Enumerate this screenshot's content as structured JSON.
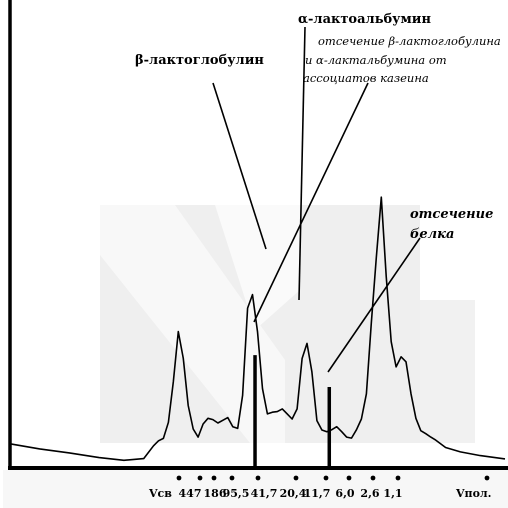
{
  "chart_data": {
    "type": "line",
    "title": "",
    "xlabel_left": "Vсв",
    "xlabel_right": "Vпол.",
    "x_tick_labels": [
      "447",
      "186",
      "95,5",
      "41,7",
      "20,4",
      "11,7",
      "6,0",
      "2,6",
      "1,1"
    ],
    "annotations": {
      "beta_lactoglobulin": "β-лактоглобулин",
      "alpha_lactalbumin": "α-лактоальбумин",
      "cutoff_note_line1": "отсечение β-лактоглобулина",
      "cutoff_note_line2": "и  α-лактальбумина от",
      "cutoff_note_line3": "ассоциатов казеина",
      "protein_cutoff_line1": "отсечение",
      "protein_cutoff_line2": "белка"
    },
    "x_range": [
      0,
      100
    ],
    "y_range": [
      0,
      100
    ],
    "series": [
      {
        "x": [
          0,
          6,
          12,
          18,
          23,
          27,
          29,
          30,
          31,
          32,
          33,
          34,
          35,
          36,
          37,
          38,
          39,
          40,
          41,
          42,
          43,
          44,
          45,
          46,
          47,
          48,
          49,
          50,
          51,
          52,
          53,
          54,
          55,
          56,
          57,
          58,
          59,
          60,
          61,
          62,
          63,
          64,
          65,
          66,
          67,
          68,
          69,
          70,
          71,
          72,
          73,
          74,
          75,
          76,
          77,
          78,
          79,
          80,
          81,
          82,
          83,
          84,
          85,
          86,
          88,
          91,
          95,
          100
        ],
        "y": [
          6.6,
          5.1,
          3.9,
          2.5,
          1.7,
          2.2,
          6,
          7.5,
          8.2,
          13,
          25,
          40,
          32,
          18,
          11,
          8.6,
          12.5,
          14.2,
          13.8,
          12.8,
          13.6,
          14.4,
          11.7,
          11.2,
          21,
          47,
          51,
          40,
          23,
          15.5,
          16,
          16.2,
          17,
          15.5,
          14,
          17,
          32,
          36.5,
          28,
          13.5,
          10.7,
          10.2,
          10.8,
          11.7,
          10.2,
          8.6,
          8.3,
          10.8,
          14,
          21.5,
          42.5,
          62,
          80,
          56.5,
          37,
          29.5,
          32.5,
          31,
          21.5,
          14.2,
          10.5,
          9.6,
          8.6,
          7.7,
          5.5,
          4.2,
          3.1,
          2.1
        ]
      }
    ],
    "cutoffs": [
      {
        "x": 49.5,
        "y": 33
      },
      {
        "x": 64.5,
        "y": 23.5
      }
    ]
  }
}
